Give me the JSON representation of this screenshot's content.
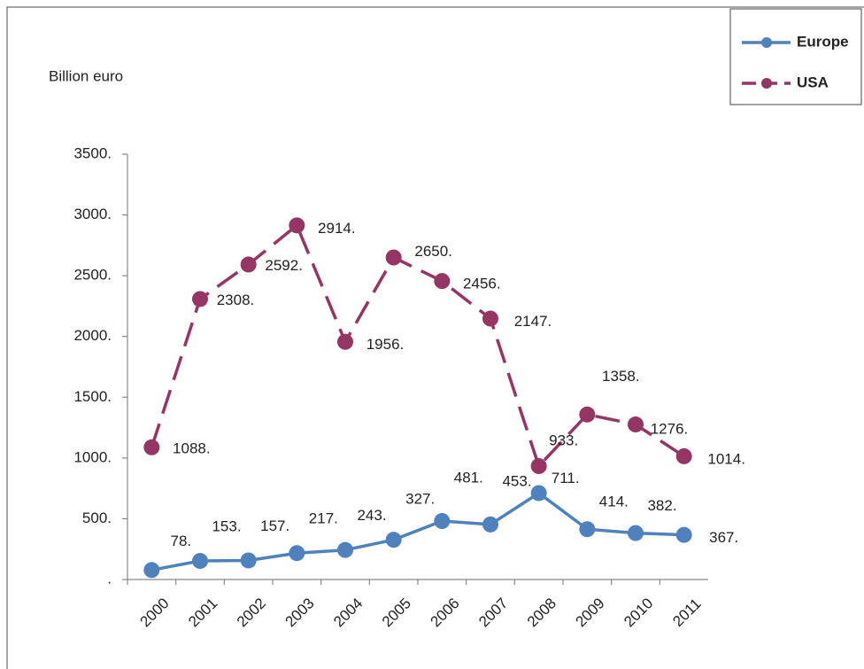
{
  "chart_data": {
    "type": "line",
    "y_label": "Billion euro",
    "categories": [
      "2000",
      "2001",
      "2002",
      "2003",
      "2004",
      "2005",
      "2006",
      "2007",
      "2008",
      "2009",
      "2010",
      "2011"
    ],
    "series": [
      {
        "name": "Europe",
        "color": "#4f81bd",
        "dash": false,
        "values": [
          78,
          153,
          157,
          217,
          243,
          327,
          481,
          453,
          711,
          414,
          382,
          367
        ],
        "value_labels": [
          "78.",
          "153.",
          "157.",
          "217.",
          "243.",
          "327.",
          "481.",
          "453.",
          "711.",
          "414.",
          "382.",
          "367."
        ]
      },
      {
        "name": "USA",
        "color": "#953564",
        "dash": true,
        "values": [
          1088,
          2308,
          2592,
          2914,
          1956,
          2650,
          2456,
          2147,
          933,
          1358,
          1276,
          1014
        ],
        "value_labels": [
          "1088.",
          "2308.",
          "2592.",
          "2914.",
          "1956.",
          "2650.",
          "2456.",
          "2147.",
          "933.",
          "1358.",
          "1276.",
          "1014."
        ]
      }
    ],
    "ylim": [
      0,
      3500
    ],
    "yticks": [
      {
        "value": 0,
        "label": "."
      },
      {
        "value": 500,
        "label": "500."
      },
      {
        "value": 1000,
        "label": "1000."
      },
      {
        "value": 1500,
        "label": "1500."
      },
      {
        "value": 2000,
        "label": "2000."
      },
      {
        "value": 2500,
        "label": "2500."
      },
      {
        "value": 3000,
        "label": "3000."
      },
      {
        "value": 3500,
        "label": "3500."
      }
    ],
    "legend": "top-right"
  }
}
